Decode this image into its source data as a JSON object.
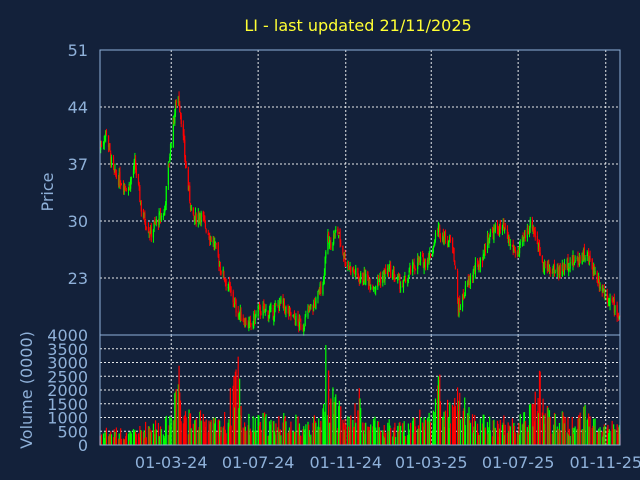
{
  "chart_data": [
    {
      "type": "candlestick",
      "title": "LI - last updated 21/11/2025",
      "ylabel": "Price",
      "ylim": [
        16,
        51
      ],
      "yticks": [
        51,
        44,
        37,
        30,
        23
      ],
      "xticks": [
        "01-03-24",
        "01-07-24",
        "01-11-24",
        "01-03-25",
        "01-07-25",
        "01-11-25"
      ],
      "xlim": [
        "2023-11-22",
        "2025-11-21"
      ],
      "up_color": "#00ff00",
      "down_color": "#ff0000",
      "grid": true,
      "series": [
        {
          "x": [
            "2023-11-22",
            "2023-12-01",
            "2023-12-10",
            "2023-12-20",
            "2024-01-01",
            "2024-01-10",
            "2024-01-20",
            "2024-02-01",
            "2024-02-10",
            "2024-02-20",
            "2024-03-01",
            "2024-03-10",
            "2024-03-16",
            "2024-03-20",
            "2024-03-25",
            "2024-04-01",
            "2024-04-10",
            "2024-04-20",
            "2024-05-01",
            "2024-05-10",
            "2024-05-20",
            "2024-06-01",
            "2024-06-10",
            "2024-06-20",
            "2024-07-01",
            "2024-07-10",
            "2024-07-20",
            "2024-08-01",
            "2024-08-10",
            "2024-08-20",
            "2024-09-01",
            "2024-09-10",
            "2024-09-20",
            "2024-10-01",
            "2024-10-05",
            "2024-10-10",
            "2024-10-20",
            "2024-11-01",
            "2024-11-10",
            "2024-11-20",
            "2024-12-01",
            "2024-12-10",
            "2024-12-20",
            "2025-01-01",
            "2025-01-10",
            "2025-01-20",
            "2025-02-01",
            "2025-02-10",
            "2025-02-20",
            "2025-03-01",
            "2025-03-10",
            "2025-03-20",
            "2025-04-01",
            "2025-04-08",
            "2025-04-20",
            "2025-05-01",
            "2025-05-10",
            "2025-05-20",
            "2025-06-01",
            "2025-06-10",
            "2025-06-20",
            "2025-07-01",
            "2025-07-10",
            "2025-07-20",
            "2025-08-01",
            "2025-08-10",
            "2025-08-20",
            "2025-09-01",
            "2025-09-10",
            "2025-09-20",
            "2025-10-01",
            "2025-10-10",
            "2025-10-20",
            "2025-11-01",
            "2025-11-10",
            "2025-11-21"
          ],
          "close": [
            39,
            41,
            36,
            35,
            34,
            37,
            31,
            28.5,
            30,
            31,
            40,
            46,
            42,
            38,
            34,
            30,
            31,
            29,
            27,
            24,
            22,
            19,
            18,
            17,
            19,
            19,
            18.5,
            20,
            19,
            18,
            17,
            19,
            20,
            23,
            28,
            27,
            29,
            25,
            24,
            23,
            23,
            22,
            23,
            24,
            23,
            22,
            24,
            25,
            25,
            26,
            29,
            28,
            27,
            19,
            22,
            24,
            25,
            28,
            29,
            29,
            27,
            26,
            28,
            30,
            26,
            24,
            24,
            24,
            25,
            25,
            26,
            25,
            23,
            21,
            20,
            18
          ],
          "volume": [
            450,
            600,
            500,
            550,
            400,
            500,
            600,
            900,
            800,
            700,
            1200,
            3200,
            2200,
            1500,
            1100,
            900,
            1000,
            1200,
            800,
            900,
            1100,
            3500,
            1000,
            900,
            900,
            1000,
            800,
            1000,
            900,
            1000,
            700,
            800,
            900,
            1500,
            3500,
            2000,
            1400,
            1000,
            900,
            1700,
            700,
            900,
            600,
            800,
            700,
            700,
            900,
            1200,
            1000,
            1100,
            2500,
            1400,
            1300,
            2000,
            1200,
            1000,
            900,
            1000,
            800,
            900,
            800,
            900,
            1000,
            1300,
            2400,
            1200,
            1000,
            1000,
            900,
            800,
            1600,
            900,
            1000,
            700,
            800,
            600
          ]
        }
      ]
    },
    {
      "type": "bar",
      "ylabel": "Volume (0000)",
      "ylim": [
        0,
        4000
      ],
      "yticks": [
        4000,
        3500,
        3000,
        2500,
        2000,
        1500,
        1000,
        500,
        0
      ],
      "grid": true
    }
  ]
}
